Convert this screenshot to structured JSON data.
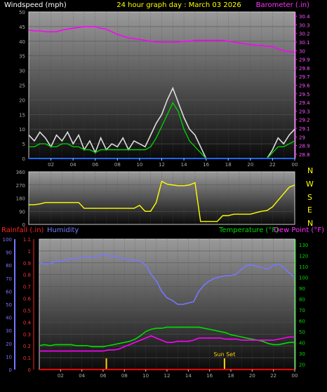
{
  "header": {
    "left_title": "Windspeed (mph)",
    "center_title": "24 hour graph day : March 03 2026",
    "right_title": "Barometer (.in)"
  },
  "colors": {
    "wind": "#ffffff",
    "wind_avg": "#00cc00",
    "barometer": "#ff00ff",
    "direction": "#ffff00",
    "rain": "#ff0000",
    "humidity": "#7777ff",
    "temperature": "#00dd00",
    "dewpoint": "#ff00ff",
    "sun": "#ffd200",
    "axis_x": "#1a66ff"
  },
  "x_ticks": [
    "02",
    "04",
    "06",
    "08",
    "10",
    "12",
    "14",
    "16",
    "18",
    "20",
    "22",
    "00"
  ],
  "direction_axis": {
    "compass": [
      "N",
      "W",
      "S",
      "E",
      "N"
    ]
  },
  "bottom": {
    "rain_label": "Rainfall (.in)",
    "humidity_label": "Humidity",
    "temp_label": "Temperature (°F)",
    "dew_label": "Dew Point (°F)",
    "sunset_label": "Sun Set"
  },
  "chart_data": [
    {
      "type": "line",
      "title": "24 hour graph day : March 03 2026",
      "xlabel": "",
      "ylabel": "Windspeed (mph)",
      "y2label": "Barometer (.in)",
      "ylim": [
        0,
        50
      ],
      "y2lim": [
        28.75,
        30.45
      ],
      "y_ticks": [
        0,
        5,
        10,
        15,
        20,
        25,
        30,
        35,
        40,
        45,
        50
      ],
      "y2_ticks": [
        "28.8",
        "28.9",
        "29",
        "29.1",
        "29.2",
        "29.3",
        "29.4",
        "29.5",
        "29.6",
        "29.7",
        "29.8",
        "29.9",
        "30",
        "30.1",
        "30.2",
        "30.3",
        "30.4"
      ],
      "x_hours": [
        0,
        0.5,
        1,
        1.5,
        2,
        2.5,
        3,
        3.5,
        4,
        4.5,
        5,
        5.5,
        6,
        6.5,
        7,
        7.5,
        8,
        8.5,
        9,
        9.5,
        10,
        10.5,
        11,
        11.5,
        12,
        12.5,
        13,
        13.5,
        14,
        14.5,
        15,
        15.5,
        16,
        16.5,
        17,
        17.5,
        18,
        18.5,
        19,
        19.5,
        20,
        20.5,
        21,
        21.5,
        22,
        22.5,
        23,
        23.5,
        24
      ],
      "series": [
        {
          "name": "Windspeed (mph)",
          "axis": "left",
          "values": [
            8,
            6,
            9,
            7,
            4,
            8,
            6,
            9,
            5,
            8,
            3,
            6,
            2,
            7,
            3,
            5,
            4,
            7,
            3,
            6,
            5,
            4,
            8,
            12,
            15,
            20,
            24,
            19,
            14,
            10,
            8,
            4,
            0,
            0,
            0,
            0,
            0,
            0,
            0,
            0,
            0,
            0,
            0,
            0,
            3,
            7,
            5,
            8,
            10
          ]
        },
        {
          "name": "Wind average",
          "axis": "left",
          "values": [
            4,
            4,
            5,
            5,
            4,
            4,
            5,
            5,
            4,
            4,
            3,
            3,
            2,
            3,
            3,
            3,
            3,
            3,
            3,
            3,
            3,
            3,
            4,
            7,
            11,
            15,
            19,
            16,
            10,
            6,
            4,
            2,
            0,
            0,
            0,
            0,
            0,
            0,
            0,
            0,
            0,
            0,
            0,
            0,
            2,
            4,
            4,
            5,
            6
          ]
        },
        {
          "name": "Barometer (.in)",
          "axis": "right",
          "values": [
            30.24,
            30.23,
            30.23,
            30.22,
            30.22,
            30.22,
            30.24,
            30.25,
            30.26,
            30.27,
            30.28,
            30.28,
            30.28,
            30.26,
            30.25,
            30.22,
            30.19,
            30.17,
            30.15,
            30.14,
            30.13,
            30.12,
            30.11,
            30.1,
            30.1,
            30.1,
            30.1,
            30.1,
            30.11,
            30.11,
            30.12,
            30.12,
            30.12,
            30.12,
            30.12,
            30.12,
            30.11,
            30.1,
            30.09,
            30.08,
            30.07,
            30.06,
            30.06,
            30.05,
            30.05,
            30.02,
            30.0,
            29.99,
            29.98
          ]
        }
      ]
    },
    {
      "type": "line",
      "ylabel": "Wind direction",
      "ylim": [
        0,
        360
      ],
      "y_ticks": [
        0,
        90,
        180,
        270,
        360
      ],
      "x_hours": [
        0,
        0.5,
        1,
        1.5,
        2,
        2.5,
        3,
        3.5,
        4,
        4.5,
        5,
        5.5,
        6,
        6.5,
        7,
        7.5,
        8,
        8.5,
        9,
        9.5,
        10,
        10.5,
        11,
        11.5,
        12,
        12.5,
        13,
        13.5,
        14,
        14.5,
        15,
        15.5,
        16,
        16.5,
        17,
        17.5,
        18,
        18.5,
        19,
        19.5,
        20,
        20.5,
        21,
        21.5,
        22,
        22.5,
        23,
        23.5,
        24
      ],
      "series": [
        {
          "name": "Wind direction",
          "values": [
            135,
            135,
            140,
            150,
            150,
            150,
            150,
            150,
            150,
            150,
            110,
            110,
            110,
            110,
            110,
            110,
            110,
            110,
            110,
            110,
            130,
            90,
            90,
            150,
            295,
            275,
            270,
            265,
            265,
            270,
            285,
            20,
            20,
            20,
            20,
            60,
            60,
            70,
            70,
            70,
            70,
            80,
            90,
            95,
            120,
            165,
            210,
            255,
            270
          ]
        }
      ]
    },
    {
      "type": "line",
      "ylabel": "Humidity",
      "y2label": "Temperature (°F)",
      "ylim": [
        0,
        100
      ],
      "y2lim": [
        15,
        135
      ],
      "rain_ticks": [
        "0",
        "0.1",
        "0.2",
        "0.3",
        "0.4",
        "0.5",
        "0.6",
        "0.7",
        "0.8",
        "0.9",
        "1",
        "1.1"
      ],
      "humidity_ticks": [
        0,
        10,
        20,
        30,
        40,
        50,
        60,
        70,
        80,
        90,
        100
      ],
      "temp_ticks": [
        20,
        30,
        40,
        50,
        60,
        70,
        80,
        90,
        100,
        110,
        120,
        130
      ],
      "x_hours": [
        0,
        0.5,
        1,
        1.5,
        2,
        2.5,
        3,
        3.5,
        4,
        4.5,
        5,
        5.5,
        6,
        6.5,
        7,
        7.5,
        8,
        8.5,
        9,
        9.5,
        10,
        10.5,
        11,
        11.5,
        12,
        12.5,
        13,
        13.5,
        14,
        14.5,
        15,
        15.5,
        16,
        16.5,
        17,
        17.5,
        18,
        18.5,
        19,
        19.5,
        20,
        20.5,
        21,
        21.5,
        22,
        22.5,
        23,
        23.5,
        24
      ],
      "series": [
        {
          "name": "Humidity",
          "axis": "left",
          "values": [
            82,
            81,
            81,
            83,
            83,
            84,
            85,
            85,
            86,
            86,
            86,
            87,
            88,
            87,
            87,
            86,
            85,
            84,
            84,
            83,
            80,
            73,
            68,
            60,
            55,
            53,
            50,
            50,
            51,
            52,
            60,
            65,
            68,
            70,
            71,
            72,
            72,
            73,
            77,
            80,
            80,
            79,
            78,
            77,
            80,
            81,
            78,
            74,
            71
          ]
        },
        {
          "name": "Temperature (°F)",
          "axis": "right",
          "values": [
            37,
            38,
            37,
            38,
            38,
            38,
            38,
            37,
            37,
            37,
            36,
            36,
            36,
            37,
            38,
            39,
            40,
            41,
            43,
            46,
            50,
            52,
            53,
            53,
            54,
            54,
            54,
            54,
            54,
            54,
            54,
            53,
            52,
            51,
            50,
            49,
            47,
            46,
            45,
            44,
            43,
            42,
            41,
            39,
            38,
            38,
            39,
            40,
            40
          ]
        },
        {
          "name": "Dew Point (°F)",
          "axis": "right",
          "values": [
            32,
            32,
            32,
            32,
            32,
            32,
            32,
            32,
            32,
            32,
            32,
            32,
            32,
            33,
            33,
            34,
            36,
            38,
            40,
            42,
            44,
            46,
            44,
            42,
            40,
            40,
            41,
            41,
            41,
            42,
            44,
            44,
            44,
            44,
            44,
            43,
            43,
            43,
            42,
            42,
            42,
            42,
            42,
            42,
            42,
            43,
            44,
            45,
            45
          ]
        },
        {
          "name": "Rainfall (.in)",
          "axis": "left",
          "values": [
            0,
            0,
            0,
            0,
            0,
            0,
            0,
            0,
            0,
            0,
            0,
            0,
            0,
            0,
            0,
            0,
            0,
            0,
            0,
            0,
            0,
            0,
            0,
            0,
            0,
            0,
            0,
            0,
            0,
            0,
            0,
            0,
            0,
            0,
            0,
            0,
            0,
            0,
            0,
            0,
            0,
            0,
            0,
            0,
            0,
            0,
            0,
            0,
            0
          ]
        }
      ],
      "sun_markers_hours": [
        6.3,
        17.4
      ]
    }
  ]
}
